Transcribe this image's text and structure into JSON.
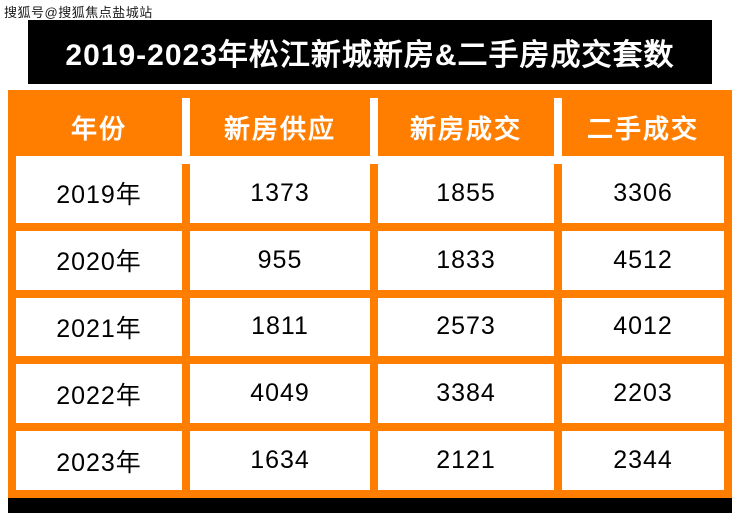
{
  "watermark": "搜狐号@搜狐焦点盐城站",
  "title": "2019-2023年松江新城新房&二手房成交套数",
  "colors": {
    "accent_orange": "#FF7E00",
    "title_bar": "#000000",
    "header_text": "#FFFFFF",
    "cell_text": "#000000"
  },
  "chart_data": {
    "type": "table",
    "title": "2019-2023年松江新城新房&二手房成交套数",
    "columns": [
      "年份",
      "新房供应",
      "新房成交",
      "二手成交"
    ],
    "rows": [
      [
        "2019年",
        1373,
        1855,
        3306
      ],
      [
        "2020年",
        955,
        1833,
        4512
      ],
      [
        "2021年",
        1811,
        2573,
        4012
      ],
      [
        "2022年",
        4049,
        3384,
        2203
      ],
      [
        "2023年",
        1634,
        2121,
        2344
      ]
    ]
  }
}
